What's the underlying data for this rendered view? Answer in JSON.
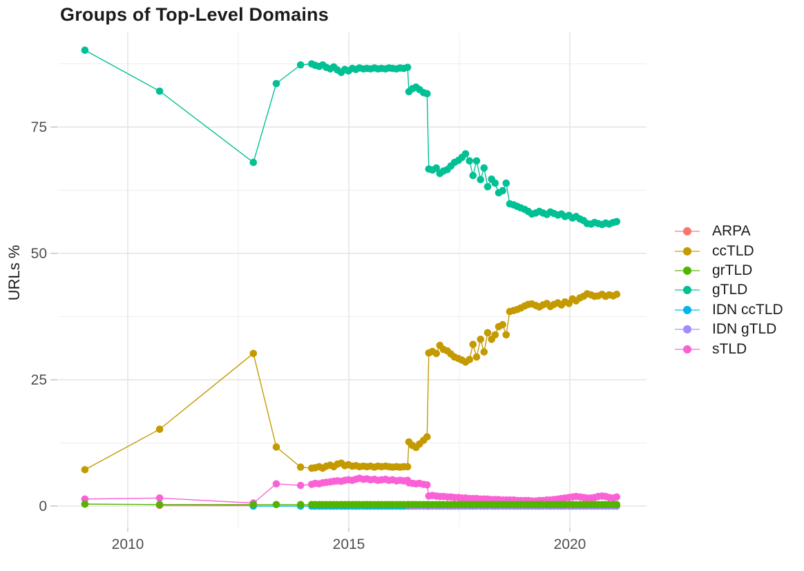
{
  "chart_data": {
    "type": "line",
    "title": "Groups of Top-Level Domains",
    "xlabel": "",
    "ylabel": "URLs %",
    "x_axis_type": "year",
    "xlim": [
      2008.44,
      2021.73
    ],
    "ylim": [
      -4.2,
      93.7
    ],
    "x_ticks": [
      2010,
      2015,
      2020
    ],
    "x_tick_labels": [
      "2010",
      "2015",
      "2020"
    ],
    "x_minor": [
      2012.5,
      2017.5
    ],
    "y_ticks": [
      0,
      25,
      50,
      75
    ],
    "y_tick_labels": [
      "0",
      "25",
      "50",
      "75"
    ],
    "y_minor": [
      12.5,
      37.5,
      62.5,
      87.5
    ],
    "grid": true,
    "legend_position": "right",
    "background": "#ffffff",
    "grid_major_color": "#e3e3e3",
    "grid_minor_color": "#ededed",
    "axis_tick_color": "#c4c4c4",
    "tick_label_color": "#4e4e4e",
    "text_color": "#1b1b1b",
    "draw_order": [
      "ARPA",
      "IDN ccTLD",
      "IDN gTLD",
      "ccTLD",
      "gTLD",
      "sTLD",
      "grTLD"
    ],
    "series": [
      {
        "name": "ARPA",
        "color": "#F8766D",
        "x": [
          2010.72,
          2012.84
        ],
        "y": [
          0.15,
          0.1
        ]
      },
      {
        "name": "ccTLD",
        "color": "#C49A00",
        "x": [
          2009.03,
          2010.72,
          2012.84,
          2013.36,
          2013.91,
          2014.16,
          2014.24,
          2014.33,
          2014.41,
          2014.49,
          2014.58,
          2014.66,
          2014.74,
          2014.83,
          2014.91,
          2014.99,
          2015.08,
          2015.16,
          2015.24,
          2015.33,
          2015.41,
          2015.49,
          2015.58,
          2015.66,
          2015.74,
          2015.83,
          2015.91,
          2015.99,
          2016.08,
          2016.16,
          2016.24,
          2016.33,
          2016.36,
          2016.44,
          2016.52,
          2016.6,
          2016.69,
          2016.77,
          2016.81,
          2016.89,
          2016.98,
          2017.06,
          2017.14,
          2017.23,
          2017.31,
          2017.39,
          2017.48,
          2017.56,
          2017.64,
          2017.73,
          2017.81,
          2017.89,
          2017.98,
          2018.06,
          2018.14,
          2018.23,
          2018.31,
          2018.39,
          2018.48,
          2018.56,
          2018.64,
          2018.73,
          2018.81,
          2018.89,
          2018.98,
          2019.06,
          2019.14,
          2019.23,
          2019.31,
          2019.39,
          2019.48,
          2019.56,
          2019.64,
          2019.73,
          2019.81,
          2019.89,
          2019.98,
          2020.06,
          2020.14,
          2020.23,
          2020.31,
          2020.39,
          2020.48,
          2020.56,
          2020.64,
          2020.73,
          2020.81,
          2020.89,
          2020.98,
          2021.06
        ],
        "y": [
          7.2,
          15.2,
          30.2,
          11.7,
          7.7,
          7.5,
          7.6,
          7.8,
          7.5,
          7.9,
          8.1,
          7.8,
          8.3,
          8.5,
          8.0,
          8.2,
          7.9,
          8.0,
          7.8,
          7.9,
          7.8,
          7.9,
          7.7,
          7.9,
          7.8,
          7.9,
          7.8,
          7.7,
          7.8,
          7.7,
          7.8,
          7.8,
          12.7,
          12.0,
          11.6,
          12.3,
          13.0,
          13.7,
          30.3,
          30.6,
          30.2,
          31.8,
          31.0,
          30.7,
          30.1,
          29.5,
          29.2,
          28.9,
          28.5,
          29.0,
          32.0,
          29.5,
          33.0,
          30.5,
          34.3,
          33.0,
          33.9,
          35.5,
          35.9,
          33.9,
          38.5,
          38.7,
          38.9,
          39.2,
          39.6,
          39.9,
          40.0,
          39.7,
          39.4,
          39.8,
          40.1,
          39.5,
          39.9,
          40.2,
          39.8,
          40.4,
          40.1,
          41.0,
          40.6,
          41.2,
          41.5,
          42.0,
          41.8,
          41.5,
          41.6,
          41.9,
          41.5,
          41.8,
          41.6,
          41.9
        ]
      },
      {
        "name": "grTLD",
        "color": "#53B400",
        "x": [
          2009.03,
          2010.72,
          2012.84,
          2013.36,
          2013.91,
          2014.16,
          2014.24,
          2014.33,
          2014.41,
          2014.49,
          2014.58,
          2014.66,
          2014.74,
          2014.83,
          2014.91,
          2014.99,
          2015.08,
          2015.16,
          2015.24,
          2015.33,
          2015.41,
          2015.49,
          2015.58,
          2015.66,
          2015.74,
          2015.83,
          2015.91,
          2015.99,
          2016.08,
          2016.16,
          2016.24,
          2016.33,
          2016.36,
          2016.44,
          2016.52,
          2016.6,
          2016.69,
          2016.77,
          2016.81,
          2016.89,
          2016.98,
          2017.06,
          2017.14,
          2017.23,
          2017.31,
          2017.39,
          2017.48,
          2017.56,
          2017.64,
          2017.73,
          2017.81,
          2017.89,
          2017.98,
          2018.06,
          2018.14,
          2018.23,
          2018.31,
          2018.39,
          2018.48,
          2018.56,
          2018.64,
          2018.73,
          2018.81,
          2018.89,
          2018.98,
          2019.06,
          2019.14,
          2019.23,
          2019.31,
          2019.39,
          2019.48,
          2019.56,
          2019.64,
          2019.73,
          2019.81,
          2019.89,
          2019.98,
          2020.06,
          2020.14,
          2020.23,
          2020.31,
          2020.39,
          2020.48,
          2020.56,
          2020.64,
          2020.73,
          2020.81,
          2020.89,
          2020.98,
          2021.06
        ],
        "y": {
          "const": 0.3,
          "overrides": {
            "0": 0.4
          }
        }
      },
      {
        "name": "gTLD",
        "color": "#00C094",
        "x": [
          2009.03,
          2010.72,
          2012.84,
          2013.36,
          2013.91,
          2014.16,
          2014.24,
          2014.33,
          2014.41,
          2014.49,
          2014.58,
          2014.66,
          2014.74,
          2014.83,
          2014.91,
          2014.99,
          2015.08,
          2015.16,
          2015.24,
          2015.33,
          2015.41,
          2015.49,
          2015.58,
          2015.66,
          2015.74,
          2015.83,
          2015.91,
          2015.99,
          2016.08,
          2016.16,
          2016.24,
          2016.33,
          2016.36,
          2016.44,
          2016.52,
          2016.6,
          2016.69,
          2016.77,
          2016.81,
          2016.89,
          2016.98,
          2017.06,
          2017.14,
          2017.23,
          2017.31,
          2017.39,
          2017.48,
          2017.56,
          2017.64,
          2017.73,
          2017.81,
          2017.89,
          2017.98,
          2018.06,
          2018.14,
          2018.23,
          2018.31,
          2018.39,
          2018.48,
          2018.56,
          2018.64,
          2018.73,
          2018.81,
          2018.89,
          2018.98,
          2019.06,
          2019.14,
          2019.23,
          2019.31,
          2019.39,
          2019.48,
          2019.56,
          2019.64,
          2019.73,
          2019.81,
          2019.89,
          2019.98,
          2020.06,
          2020.14,
          2020.23,
          2020.31,
          2020.39,
          2020.48,
          2020.56,
          2020.64,
          2020.73,
          2020.81,
          2020.89,
          2020.98,
          2021.06
        ],
        "y": [
          90.2,
          82.1,
          68.0,
          83.6,
          87.3,
          87.5,
          87.2,
          87.0,
          87.3,
          86.8,
          86.5,
          86.9,
          86.3,
          85.8,
          86.4,
          86.1,
          86.6,
          86.4,
          86.7,
          86.5,
          86.6,
          86.5,
          86.7,
          86.5,
          86.6,
          86.5,
          86.7,
          86.6,
          86.5,
          86.7,
          86.6,
          86.8,
          82.0,
          82.6,
          82.9,
          82.4,
          81.8,
          81.6,
          66.7,
          66.5,
          66.9,
          65.8,
          66.3,
          66.6,
          67.3,
          68.0,
          68.4,
          69.0,
          69.7,
          68.3,
          65.4,
          68.3,
          64.6,
          66.9,
          63.2,
          64.7,
          63.9,
          62.0,
          62.4,
          63.9,
          59.8,
          59.6,
          59.3,
          59.0,
          58.7,
          58.3,
          57.8,
          58.0,
          58.3,
          58.0,
          57.7,
          58.2,
          57.9,
          57.6,
          57.8,
          57.3,
          57.5,
          57.0,
          57.3,
          56.8,
          56.5,
          55.9,
          55.8,
          56.1,
          55.9,
          55.7,
          56.0,
          55.8,
          56.1,
          56.3
        ]
      },
      {
        "name": "IDN ccTLD",
        "color": "#00B6EB",
        "x": [
          2012.84,
          2013.91,
          2014.16,
          2014.24,
          2014.33,
          2014.41,
          2014.49,
          2014.58,
          2014.66,
          2014.74,
          2014.83,
          2014.91,
          2014.99,
          2015.08,
          2015.16,
          2015.24,
          2015.33,
          2015.41,
          2015.49,
          2015.58,
          2015.66,
          2015.74,
          2015.83,
          2015.91,
          2015.99,
          2016.08,
          2016.16,
          2016.24,
          2016.33,
          2016.36,
          2016.44,
          2016.52,
          2016.6,
          2016.69,
          2016.77,
          2016.81,
          2016.89,
          2016.98,
          2017.06,
          2017.14,
          2017.23,
          2017.31,
          2017.39,
          2017.48,
          2017.56,
          2017.64,
          2017.73,
          2017.81,
          2017.89,
          2017.98,
          2018.06,
          2018.14,
          2018.23,
          2018.31,
          2018.39,
          2018.48,
          2018.56,
          2018.64,
          2018.73,
          2018.81,
          2018.89,
          2018.98,
          2019.06,
          2019.14,
          2019.23,
          2019.31,
          2019.39,
          2019.48,
          2019.56,
          2019.64,
          2019.73,
          2019.81,
          2019.89,
          2019.98,
          2020.06,
          2020.14,
          2020.23,
          2020.31,
          2020.39,
          2020.48,
          2020.56,
          2020.64,
          2020.73,
          2020.81,
          2020.89,
          2020.98,
          2021.06
        ],
        "y": {
          "const": 0.0
        }
      },
      {
        "name": "IDN gTLD",
        "color": "#A58AFF",
        "x": [
          2016.36,
          2016.44,
          2016.52,
          2016.6,
          2016.69,
          2016.77,
          2016.81,
          2016.89,
          2016.98,
          2017.06,
          2017.14,
          2017.23,
          2017.31,
          2017.39,
          2017.48,
          2017.56,
          2017.64,
          2017.73,
          2017.81,
          2017.89,
          2017.98,
          2018.06,
          2018.14,
          2018.23,
          2018.31,
          2018.39,
          2018.48,
          2018.56,
          2018.64,
          2018.73,
          2018.81,
          2018.89,
          2018.98,
          2019.06,
          2019.14,
          2019.23,
          2019.31,
          2019.39,
          2019.48,
          2019.56,
          2019.64,
          2019.73,
          2019.81,
          2019.89,
          2019.98,
          2020.06,
          2020.14,
          2020.23,
          2020.31,
          2020.39,
          2020.48,
          2020.56,
          2020.64,
          2020.73,
          2020.81,
          2020.89,
          2020.98,
          2021.06
        ],
        "y": {
          "const": 0.0
        }
      },
      {
        "name": "sTLD",
        "color": "#FB61D7",
        "x": [
          2009.03,
          2010.72,
          2012.84,
          2013.36,
          2013.91,
          2014.16,
          2014.24,
          2014.33,
          2014.41,
          2014.49,
          2014.58,
          2014.66,
          2014.74,
          2014.83,
          2014.91,
          2014.99,
          2015.08,
          2015.16,
          2015.24,
          2015.33,
          2015.41,
          2015.49,
          2015.58,
          2015.66,
          2015.74,
          2015.83,
          2015.91,
          2015.99,
          2016.08,
          2016.16,
          2016.24,
          2016.33,
          2016.36,
          2016.44,
          2016.52,
          2016.6,
          2016.69,
          2016.77,
          2016.81,
          2016.89,
          2016.98,
          2017.06,
          2017.14,
          2017.23,
          2017.31,
          2017.39,
          2017.48,
          2017.56,
          2017.64,
          2017.73,
          2017.81,
          2017.89,
          2017.98,
          2018.06,
          2018.14,
          2018.23,
          2018.31,
          2018.39,
          2018.48,
          2018.56,
          2018.64,
          2018.73,
          2018.81,
          2018.89,
          2018.98,
          2019.06,
          2019.14,
          2019.23,
          2019.31,
          2019.39,
          2019.48,
          2019.56,
          2019.64,
          2019.73,
          2019.81,
          2019.89,
          2019.98,
          2020.06,
          2020.14,
          2020.23,
          2020.31,
          2020.39,
          2020.48,
          2020.56,
          2020.64,
          2020.73,
          2020.81,
          2020.89,
          2020.98,
          2021.06
        ],
        "y": [
          1.4,
          1.6,
          0.6,
          4.4,
          4.1,
          4.3,
          4.5,
          4.4,
          4.6,
          4.7,
          4.8,
          4.9,
          5.0,
          4.9,
          5.1,
          5.2,
          5.1,
          5.3,
          5.5,
          5.3,
          5.4,
          5.2,
          5.3,
          5.1,
          5.2,
          5.3,
          5.1,
          5.2,
          5.0,
          5.1,
          5.0,
          5.1,
          4.6,
          4.5,
          4.4,
          4.5,
          4.3,
          4.2,
          2.0,
          2.1,
          2.0,
          1.9,
          1.9,
          1.8,
          1.8,
          1.7,
          1.7,
          1.6,
          1.6,
          1.5,
          1.5,
          1.5,
          1.4,
          1.4,
          1.4,
          1.3,
          1.3,
          1.3,
          1.2,
          1.2,
          1.2,
          1.2,
          1.1,
          1.1,
          1.1,
          1.1,
          1.0,
          1.0,
          1.1,
          1.1,
          1.2,
          1.2,
          1.3,
          1.4,
          1.5,
          1.6,
          1.7,
          1.8,
          1.9,
          1.8,
          1.7,
          1.6,
          1.6,
          1.7,
          1.9,
          2.0,
          1.9,
          1.7,
          1.6,
          1.8
        ]
      }
    ]
  }
}
